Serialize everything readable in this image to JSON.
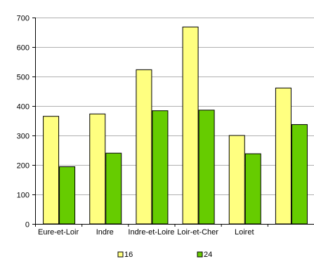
{
  "chart_data": {
    "type": "bar",
    "title": "",
    "xlabel": "",
    "ylabel": "",
    "categories": [
      "Eure-et-Loir",
      "Indre",
      "Indre-et-Loire",
      "Loir-et-Cher",
      "Loiret",
      ""
    ],
    "series": [
      {
        "name": "16",
        "color": "#FFFF80",
        "values": [
          365,
          373,
          523,
          668,
          300,
          461
        ]
      },
      {
        "name": "24",
        "color": "#66CC00",
        "values": [
          194,
          240,
          384,
          386,
          238,
          337
        ]
      }
    ],
    "ylim": [
      0,
      700
    ],
    "yticks": [
      0,
      100,
      200,
      300,
      400,
      500,
      600,
      700
    ],
    "grid": true,
    "legend_position": "bottom"
  }
}
